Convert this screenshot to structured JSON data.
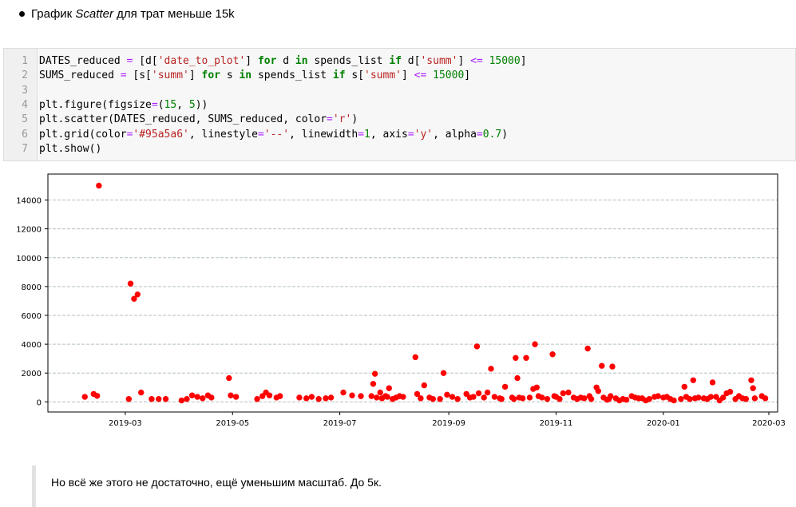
{
  "heading": {
    "prefix": "График ",
    "emph": "Scatter",
    "suffix": " для трат меньше 15k"
  },
  "code": {
    "line_numbers": [
      "1",
      "2",
      "3",
      "4",
      "5",
      "6",
      "7"
    ],
    "lines": [
      [
        {
          "t": "DATES_reduced ",
          "c": ""
        },
        {
          "t": "=",
          "c": "op"
        },
        {
          "t": " [d[",
          "c": ""
        },
        {
          "t": "'date_to_plot'",
          "c": "str"
        },
        {
          "t": "] ",
          "c": ""
        },
        {
          "t": "for",
          "c": "kw"
        },
        {
          "t": " d ",
          "c": ""
        },
        {
          "t": "in",
          "c": "kw"
        },
        {
          "t": " spends_list ",
          "c": ""
        },
        {
          "t": "if",
          "c": "kw"
        },
        {
          "t": " d[",
          "c": ""
        },
        {
          "t": "'summ'",
          "c": "str"
        },
        {
          "t": "] ",
          "c": ""
        },
        {
          "t": "<=",
          "c": "op"
        },
        {
          "t": " ",
          "c": ""
        },
        {
          "t": "15000",
          "c": "num"
        },
        {
          "t": "]",
          "c": ""
        }
      ],
      [
        {
          "t": "SUMS_reduced ",
          "c": ""
        },
        {
          "t": "=",
          "c": "op"
        },
        {
          "t": " [s[",
          "c": ""
        },
        {
          "t": "'summ'",
          "c": "str"
        },
        {
          "t": "] ",
          "c": ""
        },
        {
          "t": "for",
          "c": "kw"
        },
        {
          "t": " s ",
          "c": ""
        },
        {
          "t": "in",
          "c": "kw"
        },
        {
          "t": " spends_list ",
          "c": ""
        },
        {
          "t": "if",
          "c": "kw"
        },
        {
          "t": " s[",
          "c": ""
        },
        {
          "t": "'summ'",
          "c": "str"
        },
        {
          "t": "] ",
          "c": ""
        },
        {
          "t": "<=",
          "c": "op"
        },
        {
          "t": " ",
          "c": ""
        },
        {
          "t": "15000",
          "c": "num"
        },
        {
          "t": "]",
          "c": ""
        }
      ],
      [],
      [
        {
          "t": "plt.figure(figsize",
          "c": ""
        },
        {
          "t": "=",
          "c": "op"
        },
        {
          "t": "(",
          "c": ""
        },
        {
          "t": "15",
          "c": "num"
        },
        {
          "t": ", ",
          "c": ""
        },
        {
          "t": "5",
          "c": "num"
        },
        {
          "t": "))",
          "c": ""
        }
      ],
      [
        {
          "t": "plt.scatter(DATES_reduced, SUMS_reduced, color",
          "c": ""
        },
        {
          "t": "=",
          "c": "op"
        },
        {
          "t": "'r'",
          "c": "str"
        },
        {
          "t": ")",
          "c": ""
        }
      ],
      [
        {
          "t": "plt.grid(color",
          "c": ""
        },
        {
          "t": "=",
          "c": "op"
        },
        {
          "t": "'#95a5a6'",
          "c": "str"
        },
        {
          "t": ", linestyle",
          "c": ""
        },
        {
          "t": "=",
          "c": "op"
        },
        {
          "t": "'--'",
          "c": "str"
        },
        {
          "t": ", linewidth",
          "c": ""
        },
        {
          "t": "=",
          "c": "op"
        },
        {
          "t": "1",
          "c": "num"
        },
        {
          "t": ", axis",
          "c": ""
        },
        {
          "t": "=",
          "c": "op"
        },
        {
          "t": "'y'",
          "c": "str"
        },
        {
          "t": ", alpha",
          "c": ""
        },
        {
          "t": "=",
          "c": "op"
        },
        {
          "t": "0.7",
          "c": "num"
        },
        {
          "t": ")",
          "c": ""
        }
      ],
      [
        {
          "t": "plt.show()",
          "c": ""
        }
      ]
    ],
    "colors": {
      "keyword": "#008000",
      "operator": "#aa22ff",
      "string": "#ba2121",
      "number": "#008000"
    }
  },
  "chart_data": {
    "type": "scatter",
    "color": "#ff0000",
    "grid": {
      "axis": "y",
      "color": "#95a5a6",
      "linestyle": "--"
    },
    "xlim": [
      "2019-01-16",
      "2020-03-06"
    ],
    "ylim": [
      -700,
      15800
    ],
    "x_ticks": [
      "2019-03",
      "2019-05",
      "2019-07",
      "2019-09",
      "2019-11",
      "2020-01",
      "2020-03"
    ],
    "y_ticks": [
      0,
      2000,
      4000,
      6000,
      8000,
      10000,
      12000,
      14000
    ],
    "points": [
      [
        "2019-02-06",
        350
      ],
      [
        "2019-02-11",
        550
      ],
      [
        "2019-02-13",
        420
      ],
      [
        "2019-02-14",
        15000
      ],
      [
        "2019-03-03",
        200
      ],
      [
        "2019-03-04",
        8200
      ],
      [
        "2019-03-06",
        7150
      ],
      [
        "2019-03-08",
        7450
      ],
      [
        "2019-03-10",
        650
      ],
      [
        "2019-03-16",
        200
      ],
      [
        "2019-03-20",
        200
      ],
      [
        "2019-03-24",
        200
      ],
      [
        "2019-04-02",
        100
      ],
      [
        "2019-04-05",
        200
      ],
      [
        "2019-04-08",
        450
      ],
      [
        "2019-04-11",
        350
      ],
      [
        "2019-04-14",
        250
      ],
      [
        "2019-04-17",
        450
      ],
      [
        "2019-04-19",
        300
      ],
      [
        "2019-04-29",
        1650
      ],
      [
        "2019-04-30",
        450
      ],
      [
        "2019-05-03",
        350
      ],
      [
        "2019-05-15",
        200
      ],
      [
        "2019-05-18",
        400
      ],
      [
        "2019-05-20",
        650
      ],
      [
        "2019-05-22",
        450
      ],
      [
        "2019-05-26",
        300
      ],
      [
        "2019-05-28",
        400
      ],
      [
        "2019-06-08",
        300
      ],
      [
        "2019-06-12",
        250
      ],
      [
        "2019-06-15",
        350
      ],
      [
        "2019-06-19",
        200
      ],
      [
        "2019-06-23",
        250
      ],
      [
        "2019-06-26",
        300
      ],
      [
        "2019-07-03",
        650
      ],
      [
        "2019-07-08",
        450
      ],
      [
        "2019-07-13",
        400
      ],
      [
        "2019-07-19",
        400
      ],
      [
        "2019-07-20",
        1250
      ],
      [
        "2019-07-21",
        1950
      ],
      [
        "2019-07-22",
        300
      ],
      [
        "2019-07-24",
        650
      ],
      [
        "2019-07-25",
        250
      ],
      [
        "2019-07-27",
        400
      ],
      [
        "2019-07-28",
        350
      ],
      [
        "2019-07-29",
        950
      ],
      [
        "2019-07-31",
        200
      ],
      [
        "2019-08-02",
        300
      ],
      [
        "2019-08-04",
        400
      ],
      [
        "2019-08-06",
        350
      ],
      [
        "2019-08-13",
        3100
      ],
      [
        "2019-08-14",
        550
      ],
      [
        "2019-08-16",
        250
      ],
      [
        "2019-08-18",
        1150
      ],
      [
        "2019-08-21",
        300
      ],
      [
        "2019-08-23",
        200
      ],
      [
        "2019-08-27",
        200
      ],
      [
        "2019-08-29",
        2000
      ],
      [
        "2019-08-31",
        500
      ],
      [
        "2019-09-03",
        350
      ],
      [
        "2019-09-06",
        200
      ],
      [
        "2019-09-11",
        550
      ],
      [
        "2019-09-13",
        300
      ],
      [
        "2019-09-15",
        350
      ],
      [
        "2019-09-17",
        3850
      ],
      [
        "2019-09-18",
        600
      ],
      [
        "2019-09-21",
        300
      ],
      [
        "2019-09-23",
        650
      ],
      [
        "2019-09-25",
        2300
      ],
      [
        "2019-09-27",
        350
      ],
      [
        "2019-09-30",
        250
      ],
      [
        "2019-10-01",
        200
      ],
      [
        "2019-10-03",
        1050
      ],
      [
        "2019-10-07",
        300
      ],
      [
        "2019-10-08",
        200
      ],
      [
        "2019-10-09",
        3050
      ],
      [
        "2019-10-10",
        1650
      ],
      [
        "2019-10-11",
        300
      ],
      [
        "2019-10-13",
        250
      ],
      [
        "2019-10-15",
        3050
      ],
      [
        "2019-10-17",
        300
      ],
      [
        "2019-10-19",
        900
      ],
      [
        "2019-10-20",
        4000
      ],
      [
        "2019-10-21",
        1000
      ],
      [
        "2019-10-22",
        400
      ],
      [
        "2019-10-24",
        300
      ],
      [
        "2019-10-27",
        200
      ],
      [
        "2019-10-30",
        3300
      ],
      [
        "2019-10-31",
        400
      ],
      [
        "2019-11-01",
        350
      ],
      [
        "2019-11-03",
        200
      ],
      [
        "2019-11-05",
        600
      ],
      [
        "2019-11-08",
        650
      ],
      [
        "2019-11-11",
        300
      ],
      [
        "2019-11-13",
        200
      ],
      [
        "2019-11-15",
        300
      ],
      [
        "2019-11-17",
        250
      ],
      [
        "2019-11-19",
        3700
      ],
      [
        "2019-11-20",
        400
      ],
      [
        "2019-11-21",
        200
      ],
      [
        "2019-11-24",
        1000
      ],
      [
        "2019-11-25",
        750
      ],
      [
        "2019-11-27",
        2500
      ],
      [
        "2019-11-28",
        300
      ],
      [
        "2019-11-30",
        150
      ],
      [
        "2019-12-01",
        200
      ],
      [
        "2019-12-02",
        400
      ],
      [
        "2019-12-03",
        2450
      ],
      [
        "2019-12-05",
        250
      ],
      [
        "2019-12-07",
        100
      ],
      [
        "2019-12-09",
        200
      ],
      [
        "2019-12-11",
        150
      ],
      [
        "2019-12-14",
        400
      ],
      [
        "2019-12-16",
        300
      ],
      [
        "2019-12-18",
        250
      ],
      [
        "2019-12-20",
        250
      ],
      [
        "2019-12-22",
        100
      ],
      [
        "2019-12-24",
        200
      ],
      [
        "2019-12-27",
        350
      ],
      [
        "2019-12-29",
        400
      ],
      [
        "2020-01-01",
        300
      ],
      [
        "2020-01-03",
        350
      ],
      [
        "2020-01-05",
        200
      ],
      [
        "2020-01-07",
        100
      ],
      [
        "2020-01-11",
        200
      ],
      [
        "2020-01-13",
        1050
      ],
      [
        "2020-01-14",
        350
      ],
      [
        "2020-01-16",
        200
      ],
      [
        "2020-01-18",
        1500
      ],
      [
        "2020-01-19",
        250
      ],
      [
        "2020-01-21",
        300
      ],
      [
        "2020-01-24",
        250
      ],
      [
        "2020-01-26",
        200
      ],
      [
        "2020-01-28",
        350
      ],
      [
        "2020-01-29",
        1350
      ],
      [
        "2020-01-31",
        350
      ],
      [
        "2020-02-02",
        100
      ],
      [
        "2020-02-04",
        300
      ],
      [
        "2020-02-06",
        600
      ],
      [
        "2020-02-08",
        700
      ],
      [
        "2020-02-11",
        200
      ],
      [
        "2020-02-13",
        400
      ],
      [
        "2020-02-15",
        250
      ],
      [
        "2020-02-17",
        200
      ],
      [
        "2020-02-20",
        1500
      ],
      [
        "2020-02-21",
        950
      ],
      [
        "2020-02-22",
        250
      ],
      [
        "2020-02-26",
        400
      ],
      [
        "2020-02-28",
        250
      ]
    ]
  },
  "note": {
    "text": "Но всё же этого не достаточно, ещё уменьшим масштаб. До 5к."
  }
}
